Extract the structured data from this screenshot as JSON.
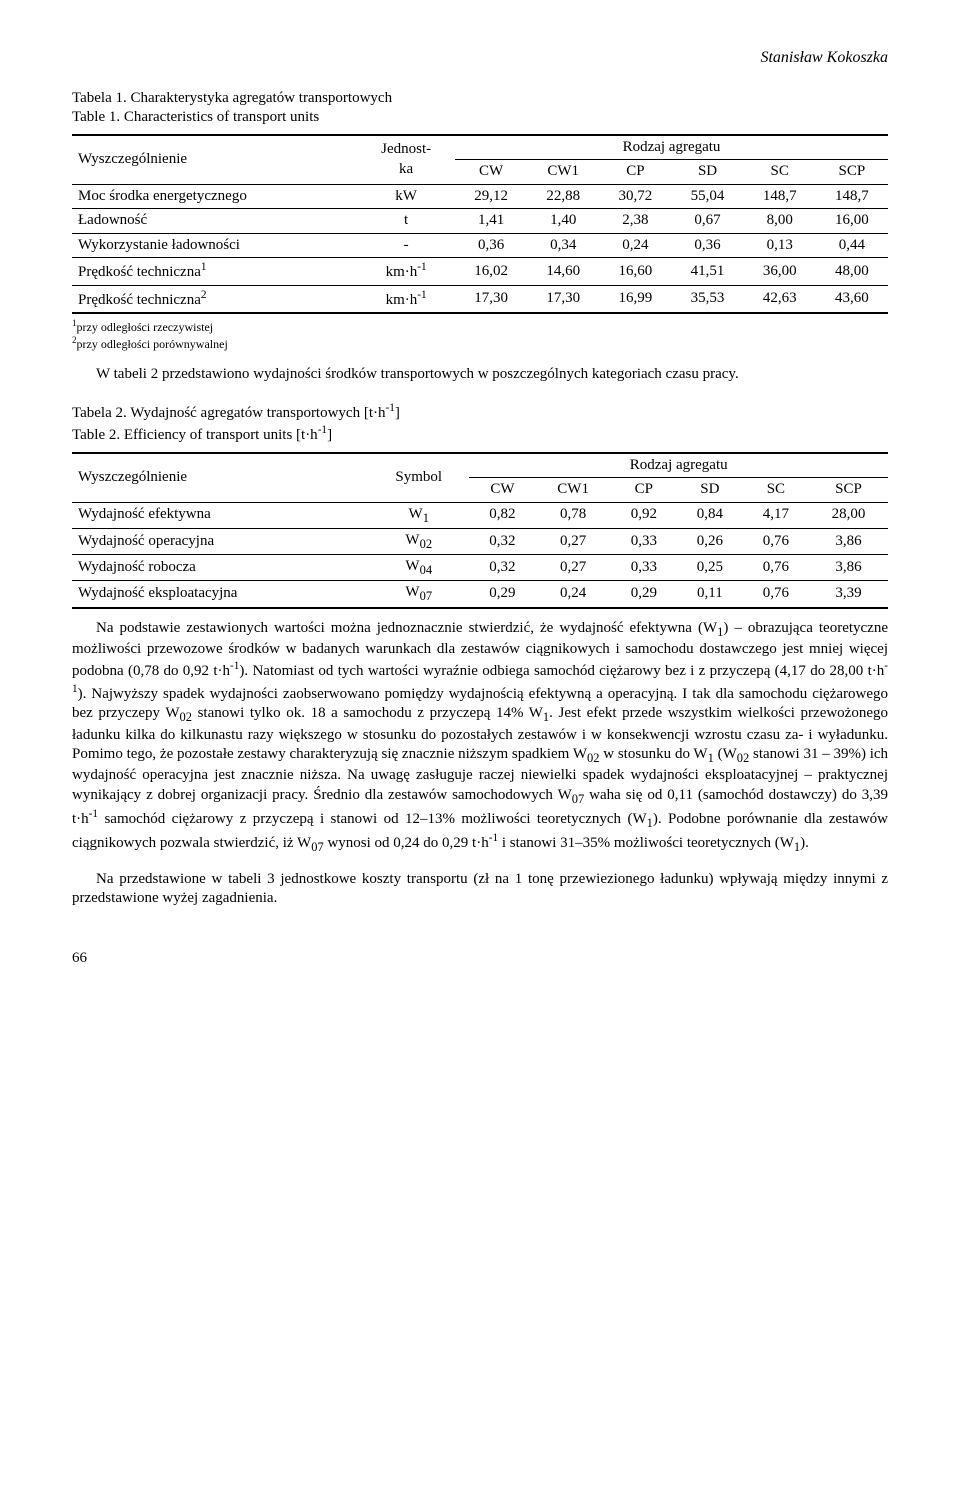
{
  "author": "Stanisław Kokoszka",
  "table1": {
    "caption_line1": "Tabela 1.   Charakterystyka agregatów transportowych",
    "caption_line2": "Table 1.    Characteristics of transport units",
    "col_spec": "Wyszczególnienie",
    "col_unit": "Jednost-\nka",
    "group_header": "Rodzaj agregatu",
    "cols": [
      "CW",
      "CW1",
      "CP",
      "SD",
      "SC",
      "SCP"
    ],
    "rows": [
      {
        "label": "Moc środka energetycznego",
        "unit": "kW",
        "vals": [
          "29,12",
          "22,88",
          "30,72",
          "55,04",
          "148,7",
          "148,7"
        ]
      },
      {
        "label": "Ładowność",
        "unit": "t",
        "vals": [
          "1,41",
          "1,40",
          "2,38",
          "0,67",
          "8,00",
          "16,00"
        ]
      },
      {
        "label": "Wykorzystanie ładowności",
        "unit": "-",
        "vals": [
          "0,36",
          "0,34",
          "0,24",
          "0,36",
          "0,13",
          "0,44"
        ]
      },
      {
        "label_html": "Prędkość techniczna<sup>1</sup>",
        "unit_html": "km·h<sup>-1</sup>",
        "vals": [
          "16,02",
          "14,60",
          "16,60",
          "41,51",
          "36,00",
          "48,00"
        ]
      },
      {
        "label_html": "Prędkość techniczna<sup>2</sup>",
        "unit_html": "km·h<sup>-1</sup>",
        "vals": [
          "17,30",
          "17,30",
          "16,99",
          "35,53",
          "42,63",
          "43,60"
        ]
      }
    ],
    "note1_html": "<sup>1</sup>przy odległości rzeczywistej",
    "note2_html": "<sup>2</sup>przy odległości porównywalnej"
  },
  "para1": "W tabeli 2 przedstawiono wydajności środków transportowych w poszczególnych kategoriach czasu pracy.",
  "table2": {
    "caption_line1_html": "Tabela 2.   Wydajność agregatów transportowych [t·h<sup>-1</sup>]",
    "caption_line2_html": "Table 2.    Efficiency of transport units [t·h<sup>-1</sup>]",
    "col_spec": "Wyszczególnienie",
    "col_symbol": "Symbol",
    "group_header": "Rodzaj agregatu",
    "cols": [
      "CW",
      "CW1",
      "CP",
      "SD",
      "SC",
      "SCP"
    ],
    "rows": [
      {
        "label": "Wydajność efektywna",
        "sym_html": "W<sub>1</sub>",
        "vals": [
          "0,82",
          "0,78",
          "0,92",
          "0,84",
          "4,17",
          "28,00"
        ]
      },
      {
        "label": "Wydajność operacyjna",
        "sym_html": "W<sub>02</sub>",
        "vals": [
          "0,32",
          "0,27",
          "0,33",
          "0,26",
          "0,76",
          "3,86"
        ]
      },
      {
        "label": "Wydajność robocza",
        "sym_html": "W<sub>04</sub>",
        "vals": [
          "0,32",
          "0,27",
          "0,33",
          "0,25",
          "0,76",
          "3,86"
        ]
      },
      {
        "label": "Wydajność eksploatacyjna",
        "sym_html": "W<sub>07</sub>",
        "vals": [
          "0,29",
          "0,24",
          "0,29",
          "0,11",
          "0,76",
          "3,39"
        ]
      }
    ]
  },
  "para2_html": "Na podstawie zestawionych wartości można jednoznacznie stwierdzić, że wydajność efektywna (W<sub>1</sub>) – obrazująca teoretyczne możliwości przewozowe środków w badanych warunkach dla zestawów ciągnikowych i samochodu dostawczego jest mniej więcej podobna (0,78 do 0,92 t·h<sup>-1</sup>). Natomiast od tych wartości wyraźnie odbiega samochód ciężarowy bez i z przyczepą (4,17 do 28,00 t·h<sup>-1</sup>). Najwyższy spadek wydajności zaobserwowano pomiędzy wydajnością efektywną a operacyjną. I tak dla samochodu ciężarowego bez przyczepy W<sub>02</sub> stanowi tylko ok. 18 a samochodu z przyczepą 14% W<sub>1</sub>. Jest efekt przede wszystkim wielkości przewożonego ładunku kilka do kilkunastu razy większego w stosunku do pozostałych zestawów i w konsekwencji wzrostu czasu za- i wyładunku. Pomimo tego, że pozostałe zestawy charakteryzują się znacznie niższym spadkiem W<sub>02</sub> w stosunku do W<sub>1</sub> (W<sub>02</sub> stanowi 31 – 39%) ich wydajność operacyjna jest znacznie niższa. Na uwagę zasługuje raczej niewielki spadek wydajności eksploatacyjnej – praktycznej wynikający z dobrej organizacji pracy. Średnio dla zestawów samochodowych W<sub>07</sub> waha się od 0,11 (samochód dostawczy) do 3,39 t·h<sup>-1</sup> samochód ciężarowy z przyczepą i stanowi od 12–13% możliwości teoretycznych (W<sub>1</sub>). Podobne porównanie dla zestawów ciągnikowych pozwala stwierdzić, iż W<sub>07</sub> wynosi od 0,24 do 0,29 t·h<sup>-1</sup> i stanowi 31–35% możliwości teoretycznych (W<sub>1</sub>).",
  "para3": "Na przedstawione w tabeli 3 jednostkowe koszty transportu (zł na 1 tonę przewiezionego ładunku) wpływają między innymi z przedstawione wyżej zagadnienia.",
  "page_number": "66"
}
